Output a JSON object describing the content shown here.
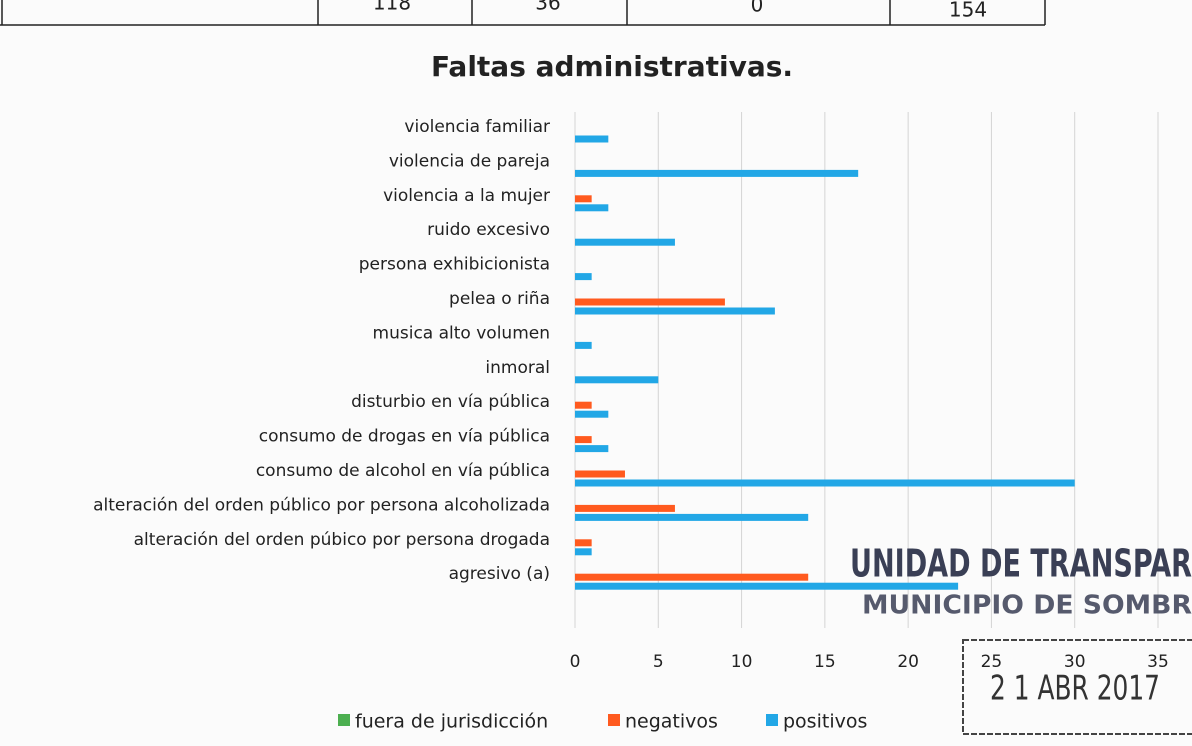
{
  "table": {
    "cells": [
      "118",
      "36",
      "0",
      "154"
    ]
  },
  "chart_data": {
    "type": "barh",
    "title": "Faltas administrativas.",
    "categories": [
      "violencia familiar",
      "violencia de pareja",
      "violencia a la mujer",
      "ruido excesivo",
      "persona exhibicionista",
      "pelea o riña",
      "musica alto volumen",
      "inmoral",
      "disturbio en vía pública",
      "consumo de drogas en vía pública",
      "consumo de alcohol en vía pública",
      "alteración del orden público por persona alcoholizada",
      "alteración del orden púbico por persona drogada",
      "agresivo (a)"
    ],
    "series": [
      {
        "name": "fuera de jurisdicción",
        "color": "#4caf50",
        "values": [
          0,
          0,
          0,
          0,
          0,
          0,
          0,
          0,
          0,
          0,
          0,
          0,
          0,
          0
        ]
      },
      {
        "name": "negativos",
        "color": "#ff5a1f",
        "values": [
          0,
          0,
          1,
          0,
          0,
          9,
          0,
          0,
          1,
          1,
          3,
          6,
          1,
          14
        ]
      },
      {
        "name": "positivos",
        "color": "#22a7e6",
        "values": [
          2,
          17,
          2,
          6,
          1,
          12,
          1,
          5,
          2,
          2,
          30,
          14,
          1,
          23
        ]
      }
    ],
    "xlim": [
      0,
      35
    ],
    "xticks": [
      0,
      5,
      10,
      15,
      20,
      25,
      30,
      35
    ],
    "grid": true,
    "legend": "bottom"
  },
  "stamps": {
    "line1": "UNIDAD DE TRANSPAR",
    "line2": "MUNICIPIO DE SOMBR",
    "date": "2 1 ABR 2017"
  }
}
